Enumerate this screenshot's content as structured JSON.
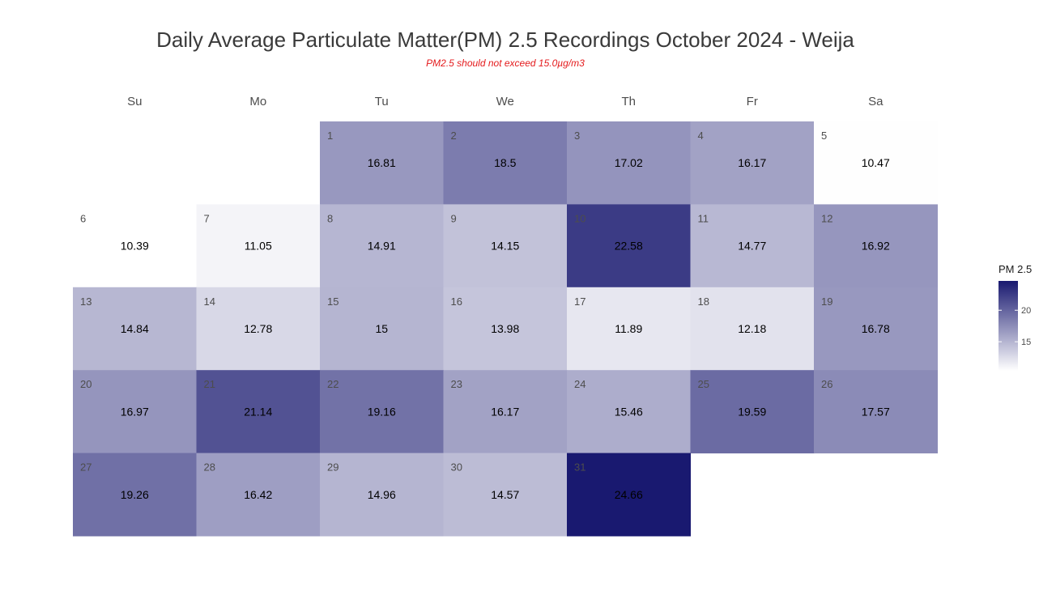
{
  "chart_data": {
    "type": "heatmap",
    "title": "Daily Average Particulate Matter(PM) 2.5 Recordings October 2024 -  Weija",
    "subtitle": "PM2.5 should not exceed 15.0µg/m3",
    "weekdays": [
      "Su",
      "Mo",
      "Tu",
      "We",
      "Th",
      "Fr",
      "Sa"
    ],
    "first_weekday_index": 2,
    "days": [
      1,
      2,
      3,
      4,
      5,
      6,
      7,
      8,
      9,
      10,
      11,
      12,
      13,
      14,
      15,
      16,
      17,
      18,
      19,
      20,
      21,
      22,
      23,
      24,
      25,
      26,
      27,
      28,
      29,
      30,
      31
    ],
    "values": [
      16.81,
      18.5,
      17.02,
      16.17,
      10.47,
      10.39,
      11.05,
      14.91,
      14.15,
      22.58,
      14.77,
      16.92,
      14.84,
      12.78,
      15,
      13.98,
      11.89,
      12.18,
      16.78,
      16.97,
      21.14,
      19.16,
      16.17,
      15.46,
      19.59,
      17.57,
      19.26,
      16.42,
      14.96,
      14.57,
      24.66
    ],
    "legend": {
      "title": "PM 2.5",
      "ticks": [
        15,
        20
      ],
      "range": [
        10.39,
        24.66
      ],
      "low_color": "#ffffff",
      "high_color": "#191970"
    }
  },
  "colors": {
    "title": "#3a3a3a",
    "subtitle": "#e41a1c"
  }
}
